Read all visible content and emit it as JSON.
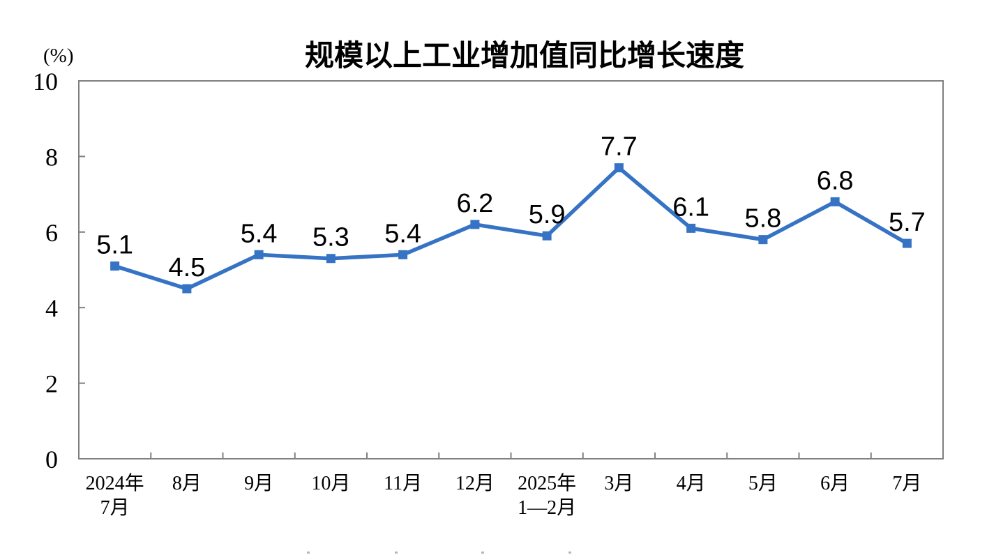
{
  "page": {
    "background": "#ffffff"
  },
  "chart": {
    "title": "规模以上工业增加值同比增长速度",
    "unit_label": "(%)",
    "colors": {
      "line": "#3673c4",
      "axis": "#7f7f7f",
      "text": "#000000",
      "artifact": "#8f8f8f"
    }
  },
  "chart_data": {
    "type": "line",
    "title": "规模以上工业增加值同比增长速度",
    "ylabel": "(%)",
    "categories": [
      "2024年 7月",
      "8月",
      "9月",
      "10月",
      "11月",
      "12月",
      "2025年 1—2月",
      "3月",
      "4月",
      "5月",
      "6月",
      "7月"
    ],
    "category_lines": [
      [
        "2024年",
        "7月"
      ],
      [
        "8月"
      ],
      [
        "9月"
      ],
      [
        "10月"
      ],
      [
        "11月"
      ],
      [
        "12月"
      ],
      [
        "2025年",
        "1—2月"
      ],
      [
        "3月"
      ],
      [
        "4月"
      ],
      [
        "5月"
      ],
      [
        "6月"
      ],
      [
        "7月"
      ]
    ],
    "values": [
      5.1,
      4.5,
      5.4,
      5.3,
      5.4,
      6.2,
      5.9,
      7.7,
      6.1,
      5.8,
      6.8,
      5.7
    ],
    "data_labels": [
      "5.1",
      "4.5",
      "5.4",
      "5.3",
      "5.4",
      "6.2",
      "5.9",
      "7.7",
      "6.1",
      "5.8",
      "6.8",
      "5.7"
    ],
    "ylim": [
      0,
      10
    ],
    "yticks": [
      0,
      2,
      4,
      6,
      8,
      10
    ],
    "grid": false,
    "legend": "none",
    "marker": "square",
    "line_style": "solid"
  },
  "artifacts": {
    "bottom_cropped_text_marks_x": [
      440,
      566,
      690,
      815
    ]
  }
}
